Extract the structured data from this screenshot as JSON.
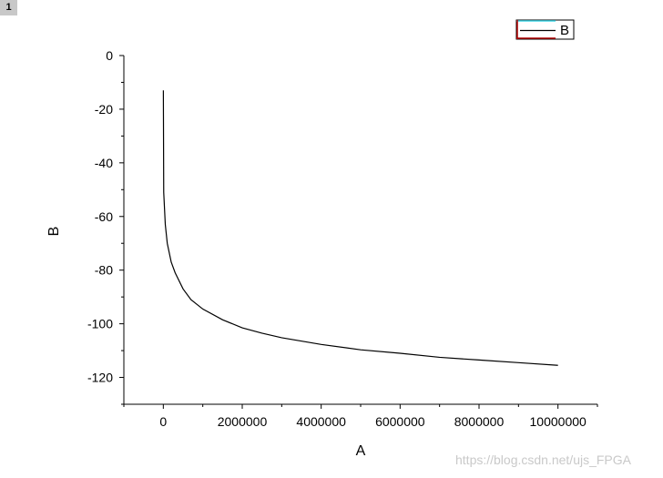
{
  "page_tag": "1",
  "watermark": "https://blog.csdn.net/ujs_FPGA",
  "chart_data": {
    "type": "line",
    "xlabel": "A",
    "ylabel": "B",
    "xlim": [
      -1000000,
      11000000
    ],
    "ylim": [
      -130,
      0
    ],
    "x_ticks": [
      0,
      2000000,
      4000000,
      6000000,
      8000000,
      10000000
    ],
    "x_tick_labels": [
      "0",
      "2000000",
      "4000000",
      "6000000",
      "8000000",
      "10000000"
    ],
    "y_ticks": [
      0,
      -20,
      -40,
      -60,
      -80,
      -100,
      -120
    ],
    "y_tick_labels": [
      "0",
      "-20",
      "-40",
      "-60",
      "-80",
      "-100",
      "-120"
    ],
    "grid": false,
    "legend_position": "top-right",
    "series": [
      {
        "name": "B",
        "color": "#000000",
        "x": [
          1000,
          10000,
          50000,
          100000,
          200000,
          300000,
          500000,
          700000,
          1000000,
          1500000,
          2000000,
          2500000,
          3000000,
          4000000,
          5000000,
          6000000,
          7000000,
          8000000,
          9000000,
          10000000
        ],
        "y": [
          -13,
          -51,
          -63,
          -70,
          -77,
          -81,
          -87,
          -91,
          -94.5,
          -98.5,
          -101.5,
          -103.5,
          -105.2,
          -107.7,
          -109.7,
          -111.0,
          -112.5,
          -113.5,
          -114.5,
          -115.5
        ]
      }
    ],
    "legend_colors": {
      "top_border": "#40d8e8",
      "bottom_border": "#b00000"
    }
  }
}
